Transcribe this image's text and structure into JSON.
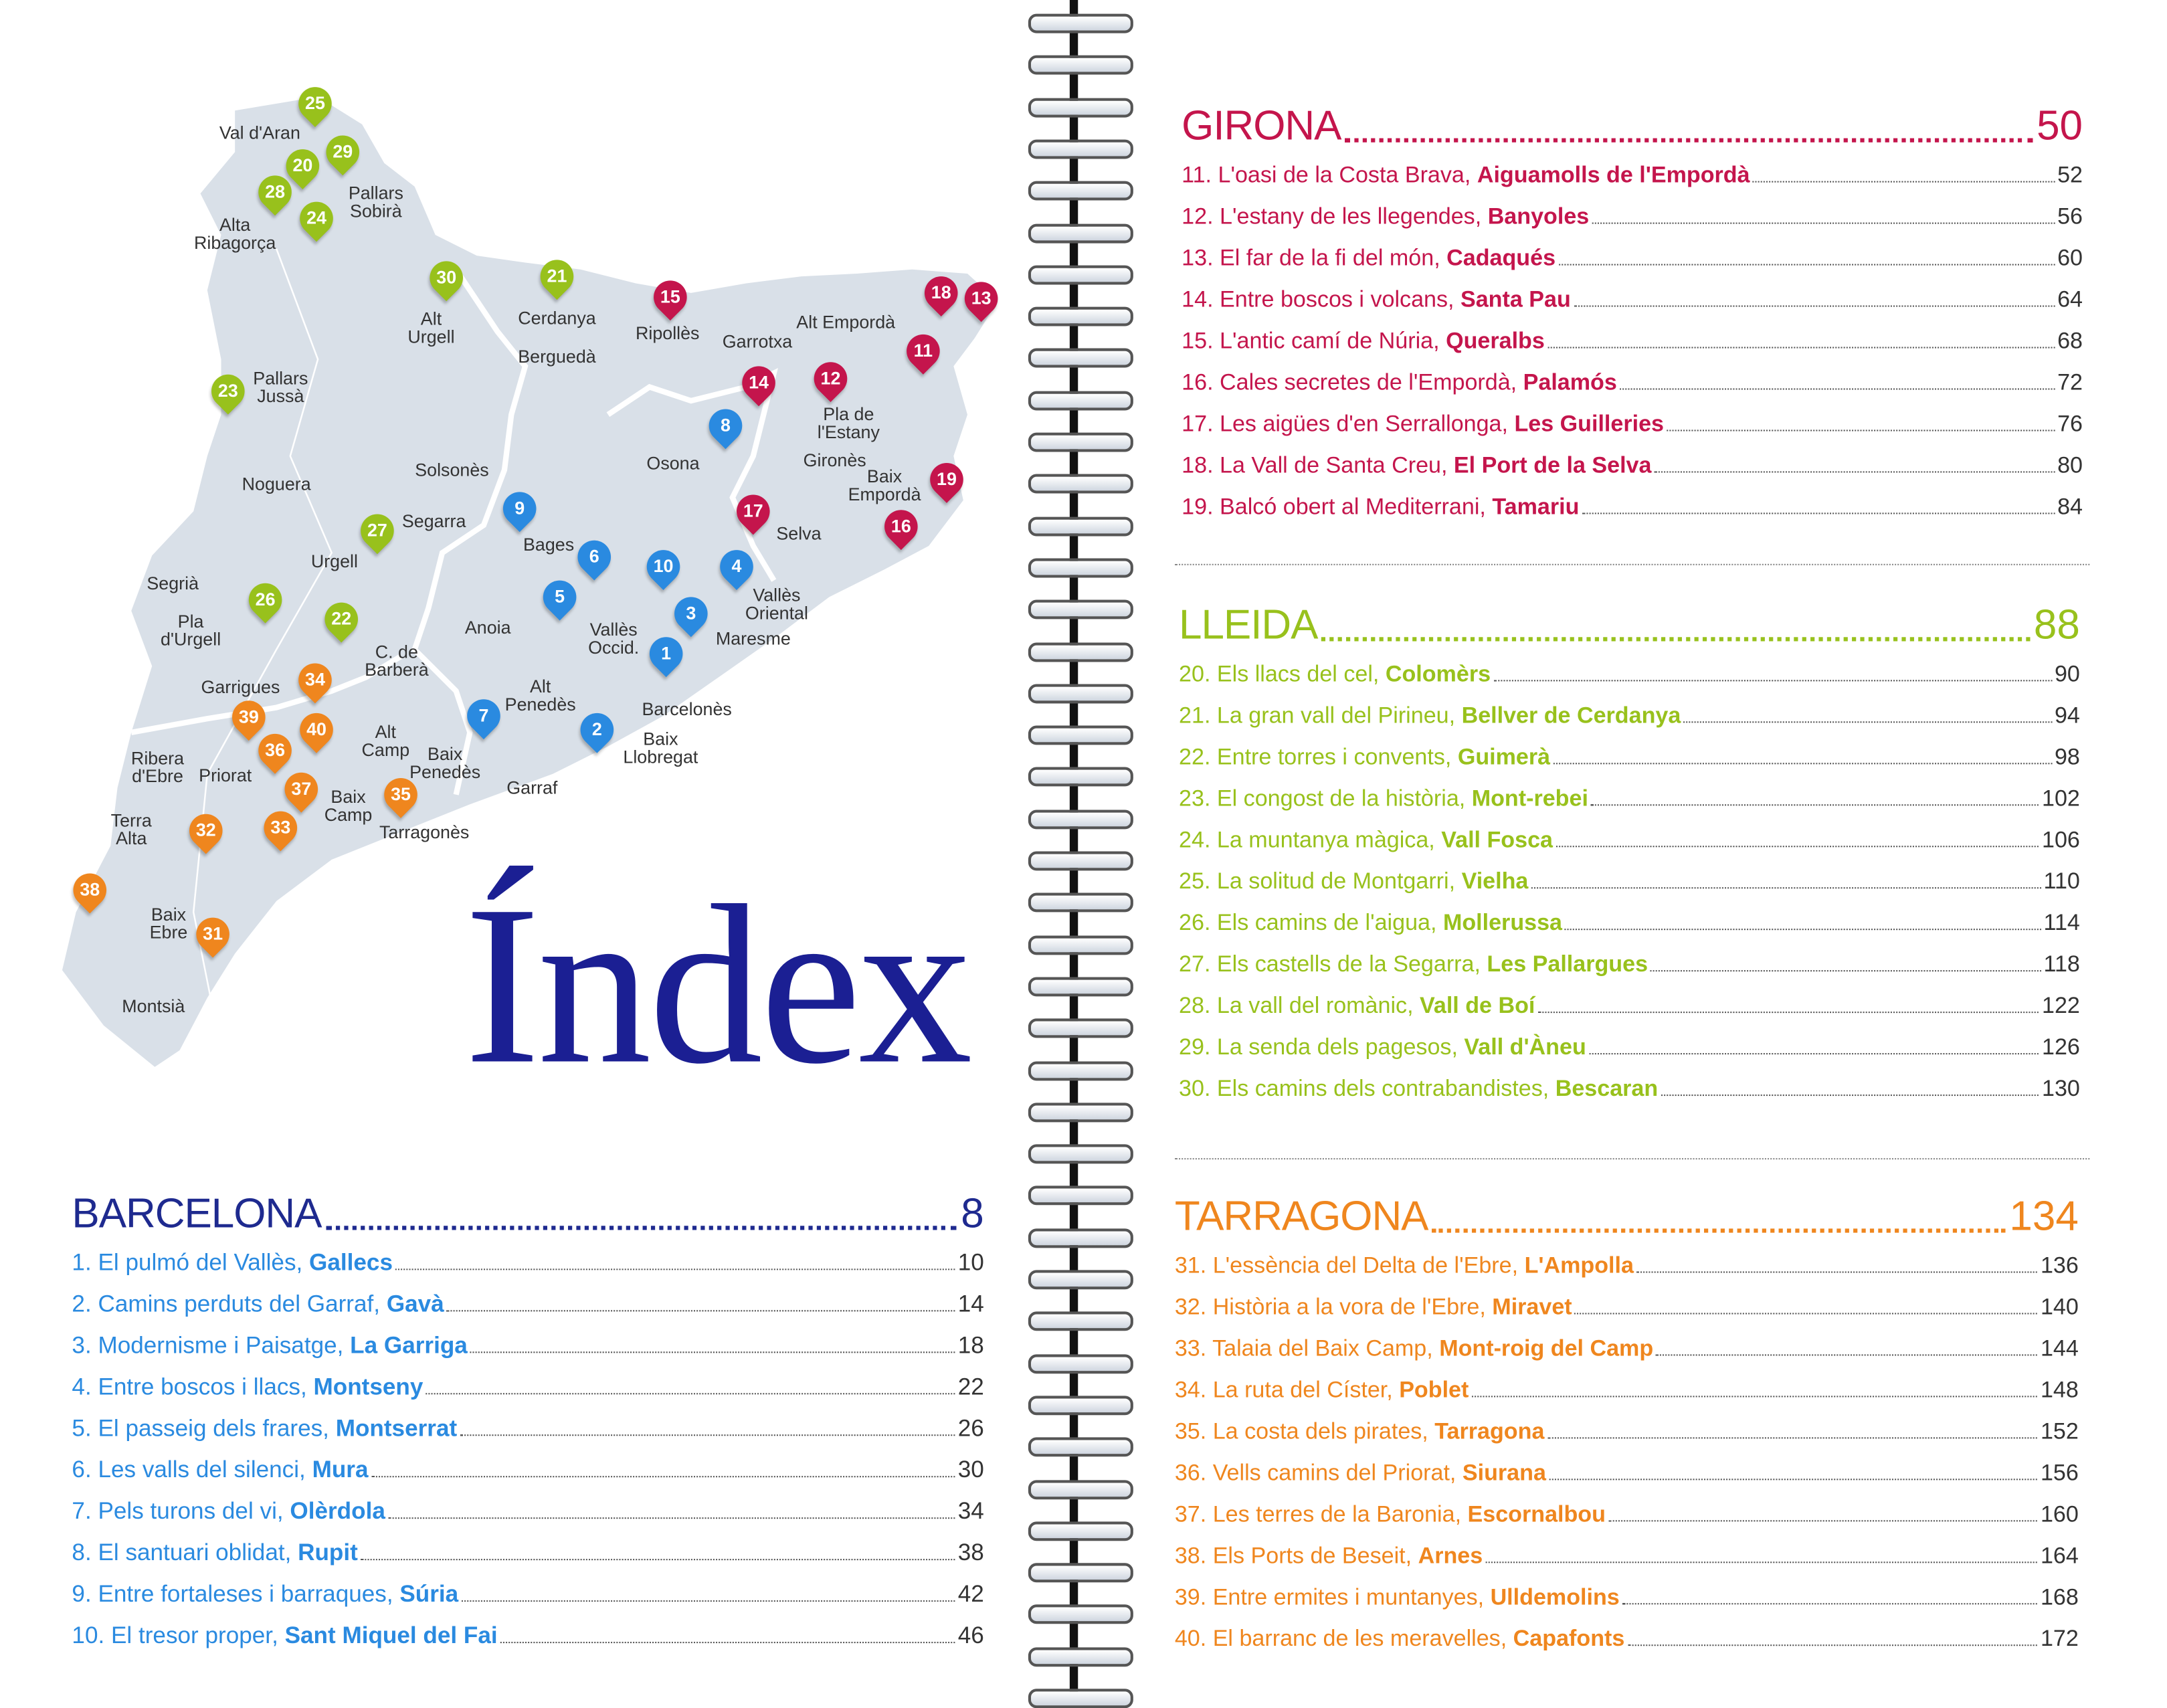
{
  "title": "Índex",
  "map": {
    "regions": [
      "Val d'Aran",
      "Pallars\nSobirà",
      "Alta\nRibagorça",
      "Alt\nUrgell",
      "Cerdanya",
      "Ripollès",
      "Berguedà",
      "Alt Empordà",
      "Garrotxa",
      "Pla de\nl'Estany",
      "Pallars\nJussà",
      "Osona",
      "Gironès",
      "Solsonès",
      "Noguera",
      "Baix\nEmpordà",
      "Segarra",
      "Selva",
      "Bages",
      "Urgell",
      "Segrià",
      "Pla\nd'Urgell",
      "Vallès\nOriental",
      "Anoia",
      "Vallès\nOccid.",
      "Maresme",
      "C. de\nBarberà",
      "Garrigues",
      "Alt\nPenedès",
      "Barcelonès",
      "Baix\nLlobregat",
      "Alt\nCamp",
      "Baix\nPenedès",
      "Priorat",
      "Ribera\nd'Ebre",
      "Garraf",
      "Baix\nCamp",
      "Tarragonès",
      "Terra\nAlta",
      "Baix\nEbre",
      "Montsià"
    ],
    "pins": [
      {
        "num": "25",
        "section": "lleida"
      },
      {
        "num": "29",
        "section": "lleida"
      },
      {
        "num": "20",
        "section": "lleida"
      },
      {
        "num": "28",
        "section": "lleida"
      },
      {
        "num": "24",
        "section": "lleida"
      },
      {
        "num": "30",
        "section": "lleida"
      },
      {
        "num": "21",
        "section": "lleida"
      },
      {
        "num": "15",
        "section": "girona"
      },
      {
        "num": "18",
        "section": "girona"
      },
      {
        "num": "13",
        "section": "girona"
      },
      {
        "num": "11",
        "section": "girona"
      },
      {
        "num": "14",
        "section": "girona"
      },
      {
        "num": "12",
        "section": "girona"
      },
      {
        "num": "8",
        "section": "barcelona"
      },
      {
        "num": "23",
        "section": "lleida"
      },
      {
        "num": "19",
        "section": "girona"
      },
      {
        "num": "17",
        "section": "girona"
      },
      {
        "num": "16",
        "section": "girona"
      },
      {
        "num": "9",
        "section": "barcelona"
      },
      {
        "num": "27",
        "section": "lleida"
      },
      {
        "num": "6",
        "section": "barcelona"
      },
      {
        "num": "10",
        "section": "barcelona"
      },
      {
        "num": "4",
        "section": "barcelona"
      },
      {
        "num": "5",
        "section": "barcelona"
      },
      {
        "num": "3",
        "section": "barcelona"
      },
      {
        "num": "1",
        "section": "barcelona"
      },
      {
        "num": "26",
        "section": "lleida"
      },
      {
        "num": "22",
        "section": "lleida"
      },
      {
        "num": "34",
        "section": "tarragona"
      },
      {
        "num": "39",
        "section": "tarragona"
      },
      {
        "num": "40",
        "section": "tarragona"
      },
      {
        "num": "36",
        "section": "tarragona"
      },
      {
        "num": "7",
        "section": "barcelona"
      },
      {
        "num": "2",
        "section": "barcelona"
      },
      {
        "num": "37",
        "section": "tarragona"
      },
      {
        "num": "35",
        "section": "tarragona"
      },
      {
        "num": "33",
        "section": "tarragona"
      },
      {
        "num": "32",
        "section": "tarragona"
      },
      {
        "num": "38",
        "section": "tarragona"
      },
      {
        "num": "31",
        "section": "tarragona"
      }
    ]
  },
  "colors": {
    "barcelona_heading": "#1e2a8f",
    "barcelona": "#2a8ae0",
    "girona": "#c4154c",
    "lleida": "#98c11c",
    "tarragona": "#ef861e",
    "map_fill": "#d9e0e8",
    "title": "#1b1f93"
  },
  "sections": {
    "barcelona": {
      "heading": "BARCELONA",
      "page": "8",
      "items": [
        {
          "label": "1. El pulmó del Vallès, ",
          "place": "Gallecs",
          "page": "10"
        },
        {
          "label": "2. Camins perduts del Garraf, ",
          "place": "Gavà",
          "page": "14"
        },
        {
          "label": "3. Modernisme i Paisatge, ",
          "place": "La Garriga",
          "page": "18"
        },
        {
          "label": "4. Entre boscos i llacs, ",
          "place": "Montseny",
          "page": "22"
        },
        {
          "label": "5. El passeig dels frares, ",
          "place": "Montserrat",
          "page": "26"
        },
        {
          "label": "6. Les valls del silenci, ",
          "place": "Mura",
          "page": "30"
        },
        {
          "label": "7. Pels turons del vi,  ",
          "place": "Olèrdola",
          "page": "34"
        },
        {
          "label": "8. El santuari oblidat, ",
          "place": "Rupit",
          "page": "38"
        },
        {
          "label": "9. Entre fortaleses i barraques, ",
          "place": "Súria",
          "page": "42"
        },
        {
          "label": "10. El tresor proper, ",
          "place": "Sant Miquel del Fai",
          "page": "46"
        }
      ]
    },
    "girona": {
      "heading": "GIRONA",
      "page": "50",
      "items": [
        {
          "label": "11. L'oasi de la Costa Brava, ",
          "place": "Aiguamolls de l'Empordà",
          "page": "52"
        },
        {
          "label": "12. L'estany de les llegendes, ",
          "place": "Banyoles",
          "page": "56"
        },
        {
          "label": "13. El far de la fi del món, ",
          "place": "Cadaqués",
          "page": "60"
        },
        {
          "label": "14. Entre boscos i volcans, ",
          "place": "Santa Pau",
          "page": "64"
        },
        {
          "label": "15. L'antic camí de Núria, ",
          "place": "Queralbs",
          "page": "68"
        },
        {
          "label": "16. Cales secretes de l'Empordà, ",
          "place": "Palamós",
          "page": "72"
        },
        {
          "label": "17. Les aigües d'en Serrallonga, ",
          "place": "Les Guilleries",
          "page": "76"
        },
        {
          "label": "18. La Vall de Santa Creu, ",
          "place": "El Port de la Selva",
          "page": "80"
        },
        {
          "label": "19. Balcó obert al Mediterrani, ",
          "place": "Tamariu",
          "page": "84"
        }
      ]
    },
    "lleida": {
      "heading": "LLEIDA",
      "page": "88",
      "items": [
        {
          "label": "20. Els llacs del cel, ",
          "place": "Colomèrs",
          "page": "90"
        },
        {
          "label": "21. La gran vall del Pirineu, ",
          "place": "Bellver de Cerdanya",
          "page": "94"
        },
        {
          "label": "22. Entre torres i convents, ",
          "place": "Guimerà",
          "page": "98"
        },
        {
          "label": "23. El congost de la història, ",
          "place": "Mont-rebei",
          "page": "102"
        },
        {
          "label": "24. La muntanya màgica, ",
          "place": "Vall Fosca",
          "page": "106"
        },
        {
          "label": "25. La solitud de Montgarri, ",
          "place": "Vielha",
          "page": "110"
        },
        {
          "label": "26. Els camins de l'aigua, ",
          "place": "Mollerussa",
          "page": "114"
        },
        {
          "label": "27. Els castells de la Segarra, ",
          "place": "Les Pallargues",
          "page": "118"
        },
        {
          "label": "28. La vall del romànic, ",
          "place": "Vall de Boí",
          "page": "122"
        },
        {
          "label": "29. La senda dels pagesos, ",
          "place": "Vall d'Àneu",
          "page": "126"
        },
        {
          "label": "30. Els camins dels contrabandistes, ",
          "place": "Bescaran",
          "page": "130"
        }
      ]
    },
    "tarragona": {
      "heading": "TARRAGONA",
      "page": "134",
      "items": [
        {
          "label": "31. L'essència del Delta de l'Ebre, ",
          "place": "L'Ampolla",
          "page": "136"
        },
        {
          "label": "32. Història a la vora de l'Ebre, ",
          "place": "Miravet",
          "page": "140"
        },
        {
          "label": "33. Talaia del Baix Camp, ",
          "place": "Mont-roig del Camp",
          "page": "144"
        },
        {
          "label": "34. La ruta del Císter, ",
          "place": "Poblet",
          "page": "148"
        },
        {
          "label": "35. La costa dels pirates, ",
          "place": "Tarragona",
          "page": "152"
        },
        {
          "label": "36. Vells camins del Priorat, ",
          "place": "Siurana",
          "page": "156"
        },
        {
          "label": "37. Les terres de la Baronia, ",
          "place": "Escornalbou",
          "page": "160"
        },
        {
          "label": "38. Els Ports de Beseit, ",
          "place": "Arnes",
          "page": "164"
        },
        {
          "label": "39. Entre ermites i muntanyes, ",
          "place": "Ulldemolins",
          "page": "168"
        },
        {
          "label": "40. El barranc de les meravelles, ",
          "place": "Capafonts",
          "page": "172"
        }
      ]
    }
  }
}
